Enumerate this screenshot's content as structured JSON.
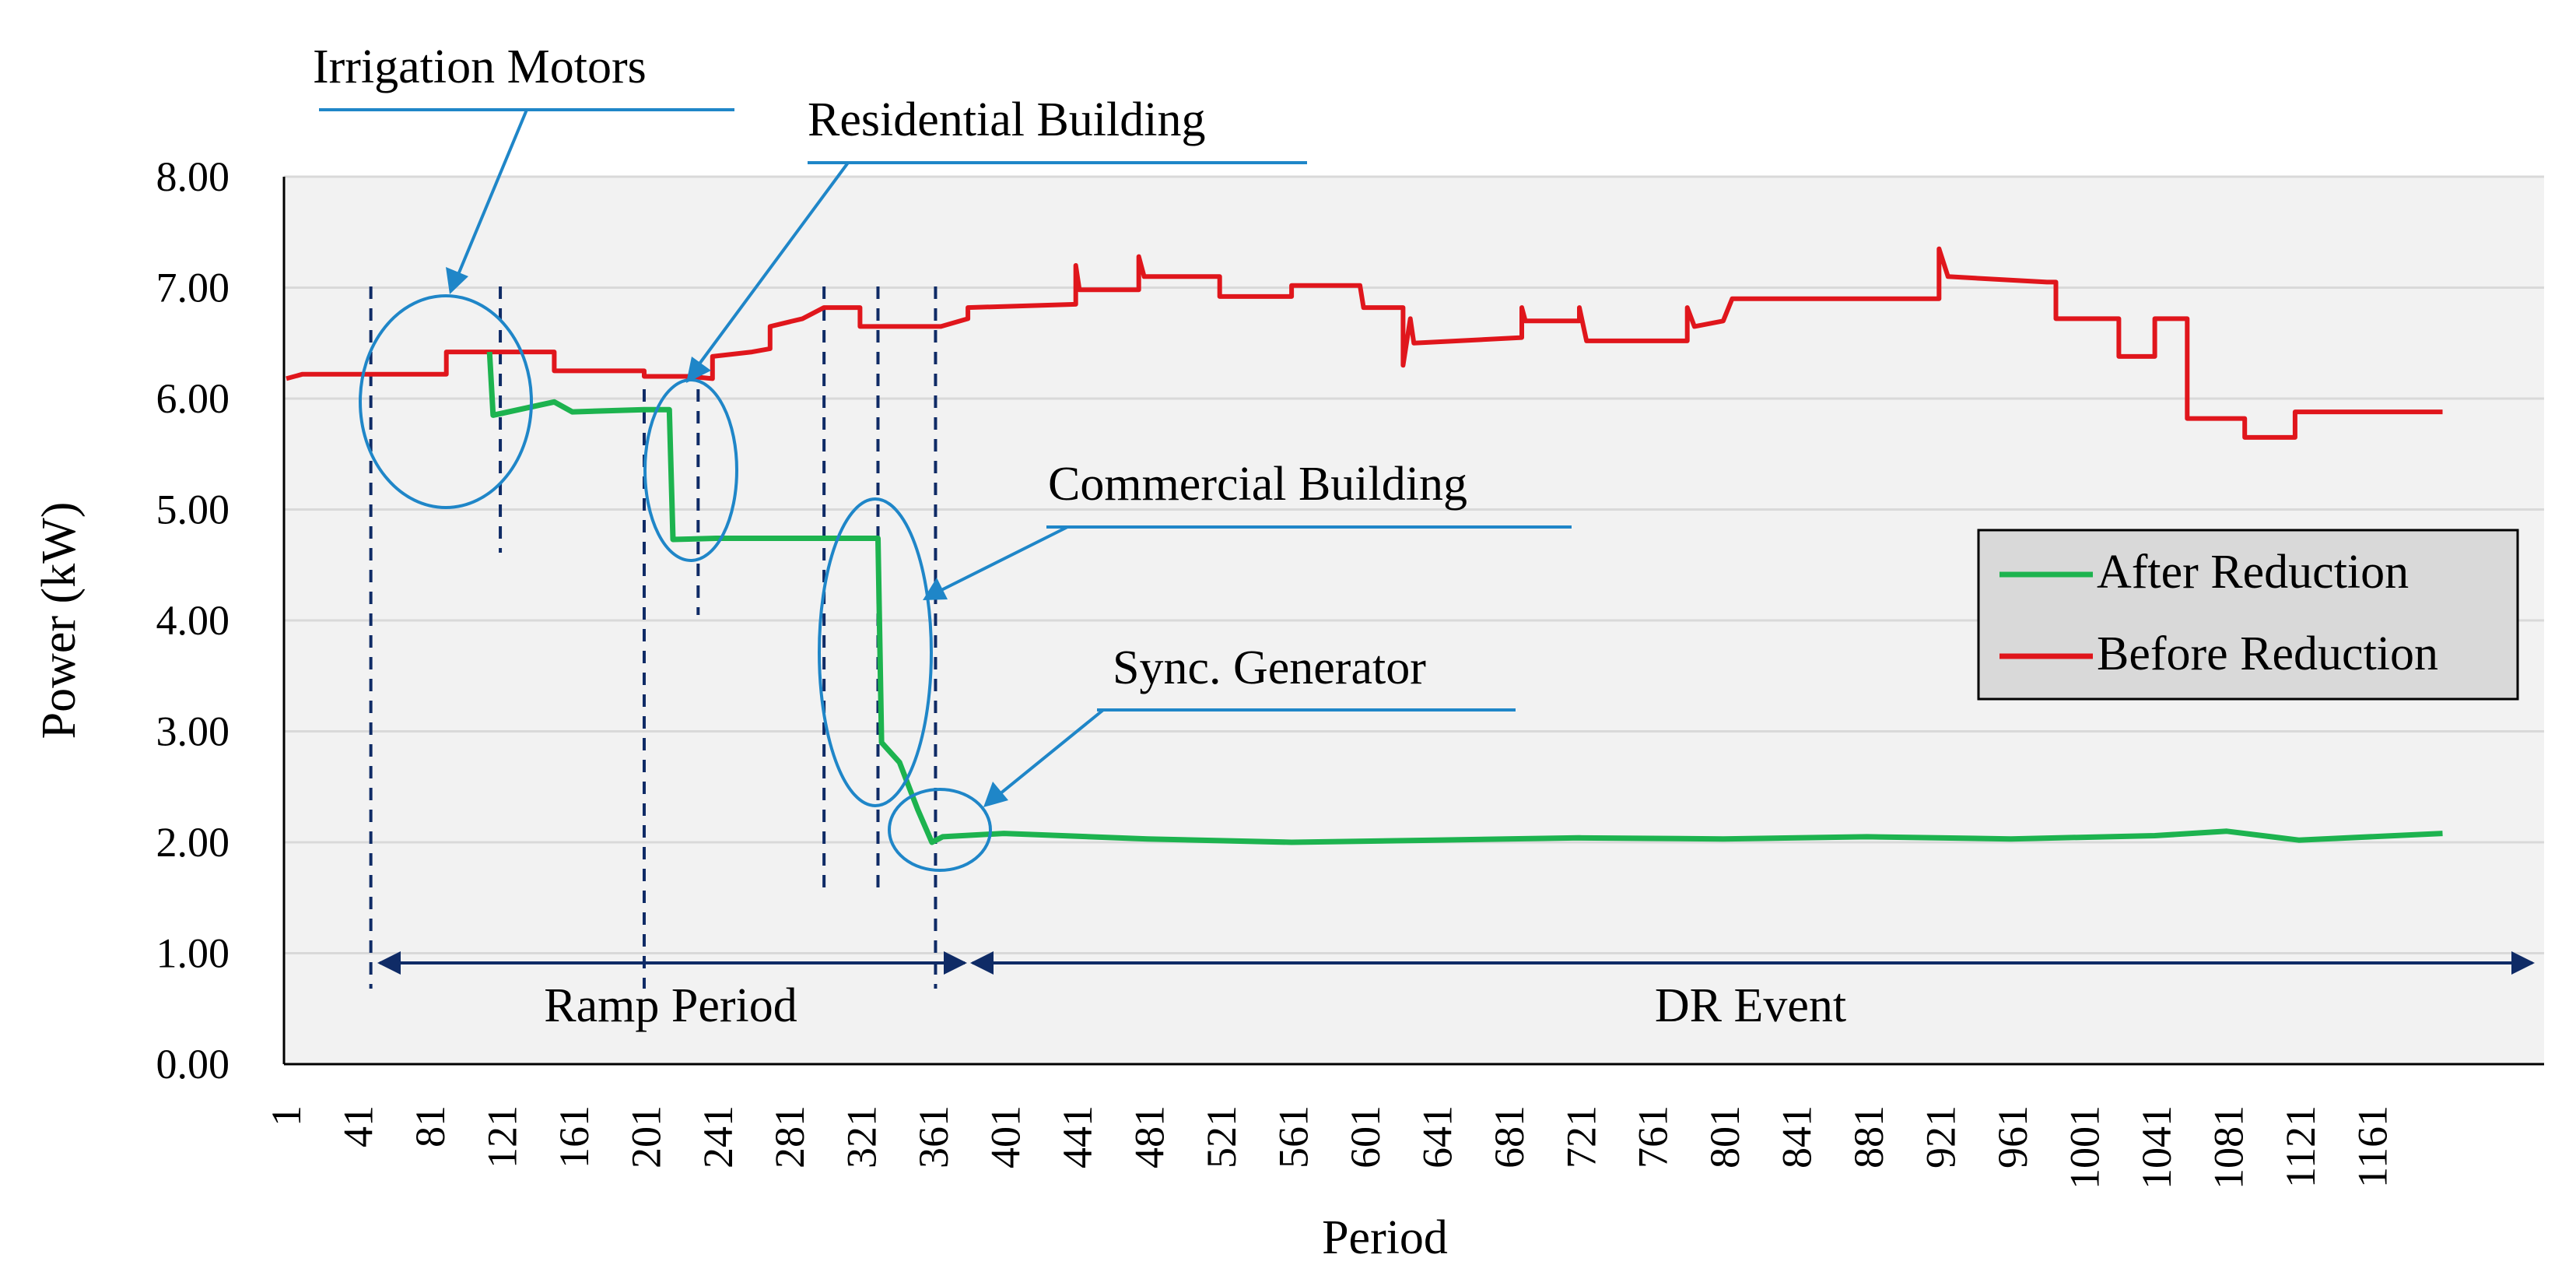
{
  "chart_data": {
    "type": "line",
    "title": "",
    "xlabel": "Period",
    "ylabel": "Power (kW)",
    "ylim": [
      0,
      8
    ],
    "xlim": [
      1,
      1200
    ],
    "y_ticks": [
      "0.00",
      "1.00",
      "2.00",
      "3.00",
      "4.00",
      "5.00",
      "6.00",
      "7.00",
      "8.00"
    ],
    "x_ticks": [
      "1",
      "41",
      "81",
      "121",
      "161",
      "201",
      "241",
      "281",
      "321",
      "361",
      "401",
      "441",
      "481",
      "521",
      "561",
      "601",
      "641",
      "681",
      "721",
      "761",
      "801",
      "841",
      "881",
      "921",
      "961",
      "1001",
      "1041",
      "1081",
      "1121",
      "1161"
    ],
    "grid": true,
    "legend_position": "right",
    "series": [
      {
        "name": "Before Reduction",
        "color": "#e0161c",
        "points": [
          [
            1,
            6.18
          ],
          [
            10,
            6.22
          ],
          [
            60,
            6.22
          ],
          [
            90,
            6.22
          ],
          [
            90,
            6.42
          ],
          [
            120,
            6.42
          ],
          [
            150,
            6.42
          ],
          [
            150,
            6.25
          ],
          [
            200,
            6.25
          ],
          [
            200,
            6.2
          ],
          [
            225,
            6.2
          ],
          [
            238,
            6.18
          ],
          [
            238,
            6.38
          ],
          [
            260,
            6.42
          ],
          [
            270,
            6.45
          ],
          [
            270,
            6.65
          ],
          [
            288,
            6.72
          ],
          [
            300,
            6.82
          ],
          [
            320,
            6.82
          ],
          [
            320,
            6.65
          ],
          [
            365,
            6.65
          ],
          [
            380,
            6.72
          ],
          [
            380,
            6.82
          ],
          [
            440,
            6.85
          ],
          [
            440,
            7.2
          ],
          [
            442,
            6.98
          ],
          [
            475,
            6.98
          ],
          [
            475,
            7.28
          ],
          [
            478,
            7.1
          ],
          [
            520,
            7.1
          ],
          [
            520,
            6.92
          ],
          [
            560,
            6.92
          ],
          [
            560,
            7.02
          ],
          [
            598,
            7.02
          ],
          [
            600,
            6.82
          ],
          [
            622,
            6.82
          ],
          [
            622,
            6.3
          ],
          [
            626,
            6.72
          ],
          [
            628,
            6.5
          ],
          [
            688,
            6.55
          ],
          [
            688,
            6.82
          ],
          [
            690,
            6.7
          ],
          [
            720,
            6.7
          ],
          [
            720,
            6.82
          ],
          [
            724,
            6.52
          ],
          [
            780,
            6.52
          ],
          [
            780,
            6.82
          ],
          [
            784,
            6.65
          ],
          [
            800,
            6.7
          ],
          [
            805,
            6.9
          ],
          [
            890,
            6.9
          ],
          [
            920,
            6.9
          ],
          [
            920,
            7.35
          ],
          [
            925,
            7.1
          ],
          [
            980,
            7.05
          ],
          [
            985,
            7.05
          ],
          [
            985,
            6.72
          ],
          [
            1020,
            6.72
          ],
          [
            1020,
            6.38
          ],
          [
            1040,
            6.38
          ],
          [
            1040,
            6.72
          ],
          [
            1058,
            6.72
          ],
          [
            1058,
            5.82
          ],
          [
            1090,
            5.82
          ],
          [
            1090,
            5.65
          ],
          [
            1118,
            5.65
          ],
          [
            1118,
            5.88
          ],
          [
            1175,
            5.88
          ],
          [
            1200,
            5.88
          ]
        ]
      },
      {
        "name": "After Reduction",
        "color": "#1db34f",
        "points": [
          [
            114,
            6.42
          ],
          [
            116,
            5.85
          ],
          [
            150,
            5.97
          ],
          [
            160,
            5.88
          ],
          [
            200,
            5.9
          ],
          [
            214,
            5.9
          ],
          [
            216,
            4.73
          ],
          [
            240,
            4.74
          ],
          [
            300,
            4.74
          ],
          [
            330,
            4.74
          ],
          [
            332,
            2.9
          ],
          [
            342,
            2.72
          ],
          [
            352,
            2.3
          ],
          [
            360,
            2.0
          ],
          [
            366,
            2.05
          ],
          [
            400,
            2.08
          ],
          [
            480,
            2.03
          ],
          [
            560,
            2.0
          ],
          [
            640,
            2.02
          ],
          [
            720,
            2.04
          ],
          [
            800,
            2.03
          ],
          [
            880,
            2.05
          ],
          [
            960,
            2.03
          ],
          [
            1040,
            2.06
          ],
          [
            1080,
            2.1
          ],
          [
            1120,
            2.02
          ],
          [
            1200,
            2.08
          ]
        ]
      }
    ],
    "annotations": [
      {
        "text": "Irrigation Motors"
      },
      {
        "text": "Residential Building"
      },
      {
        "text": "Commercial Building"
      },
      {
        "text": "Sync. Generator"
      }
    ],
    "periods": [
      {
        "text": "Ramp Period",
        "range": [
          48,
          362
        ]
      },
      {
        "text": "DR Event",
        "range": [
          362,
          1200
        ]
      }
    ],
    "dashed_markers": [
      48,
      120,
      200,
      230,
      300,
      330,
      362
    ]
  }
}
